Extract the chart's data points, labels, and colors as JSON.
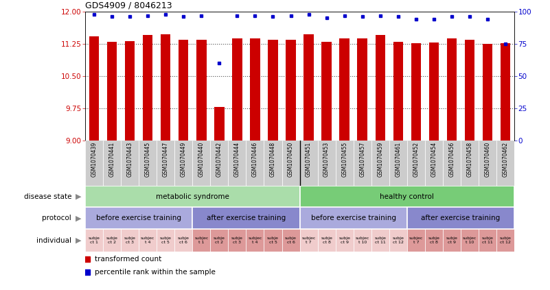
{
  "title": "GDS4909 / 8046213",
  "bar_values": [
    11.42,
    11.3,
    11.32,
    11.45,
    11.48,
    11.35,
    11.35,
    9.79,
    11.38,
    11.37,
    11.35,
    11.34,
    11.47,
    11.3,
    11.38,
    11.37,
    11.45,
    11.3,
    11.27,
    11.28,
    11.37,
    11.35,
    11.25,
    11.27
  ],
  "percentile_values": [
    98,
    96,
    96,
    97,
    98,
    96,
    97,
    60,
    97,
    97,
    96,
    97,
    98,
    95,
    97,
    96,
    97,
    96,
    94,
    94,
    96,
    96,
    94,
    75
  ],
  "sample_ids": [
    "GSM1070439",
    "GSM1070441",
    "GSM1070443",
    "GSM1070445",
    "GSM1070447",
    "GSM1070449",
    "GSM1070440",
    "GSM1070442",
    "GSM1070444",
    "GSM1070446",
    "GSM1070448",
    "GSM1070450",
    "GSM1070451",
    "GSM1070453",
    "GSM1070455",
    "GSM1070457",
    "GSM1070459",
    "GSM1070461",
    "GSM1070452",
    "GSM1070454",
    "GSM1070456",
    "GSM1070458",
    "GSM1070460",
    "GSM1070462"
  ],
  "individual_texts": [
    "subje\nct 1",
    "subje\nct 2",
    "subje\nct 3",
    "subjec\nt 4",
    "subje\nct 5",
    "subje\nct 6",
    "subjec\nt 1",
    "subje\nct 2",
    "subje\nct 3",
    "subjec\nt 4",
    "subje\nct 5",
    "subje\nct 6",
    "subjec\nt 7",
    "subje\nct 8",
    "subje\nct 9",
    "subjec\nt 10",
    "subje\nct 11",
    "subje\nct 12",
    "subjec\nt 7",
    "subje\nct 8",
    "subje\nct 9",
    "subjec\nt 10",
    "subje\nct 11",
    "subje\nct 12"
  ],
  "ylim_left": [
    9.0,
    12.0
  ],
  "ylim_right": [
    0,
    100
  ],
  "yticks_left": [
    9.0,
    9.75,
    10.5,
    11.25,
    12.0
  ],
  "yticks_right": [
    0,
    25,
    50,
    75,
    100
  ],
  "bar_color": "#cc0000",
  "dot_color": "#0000cc",
  "grid_lines": [
    9.75,
    10.5,
    11.25
  ],
  "disease_state_groups": [
    {
      "label": "metabolic syndrome",
      "start": 0,
      "end": 12,
      "color": "#aaddaa"
    },
    {
      "label": "healthy control",
      "start": 12,
      "end": 24,
      "color": "#77cc77"
    }
  ],
  "protocol_groups": [
    {
      "label": "before exercise training",
      "start": 0,
      "end": 6,
      "color": "#aaaadd"
    },
    {
      "label": "after exercise training",
      "start": 6,
      "end": 12,
      "color": "#8888cc"
    },
    {
      "label": "before exercise training",
      "start": 12,
      "end": 18,
      "color": "#aaaadd"
    },
    {
      "label": "after exercise training",
      "start": 18,
      "end": 24,
      "color": "#8888cc"
    }
  ],
  "individual_bg_light": "#f0cccc",
  "individual_bg_dark": "#dd9999",
  "row_labels": [
    {
      "text": "disease state",
      "arrow": true
    },
    {
      "text": "protocol",
      "arrow": true
    },
    {
      "text": "individual",
      "arrow": true
    }
  ],
  "legend_items": [
    {
      "label": "transformed count",
      "color": "#cc0000"
    },
    {
      "label": "percentile rank within the sample",
      "color": "#0000cc"
    }
  ]
}
